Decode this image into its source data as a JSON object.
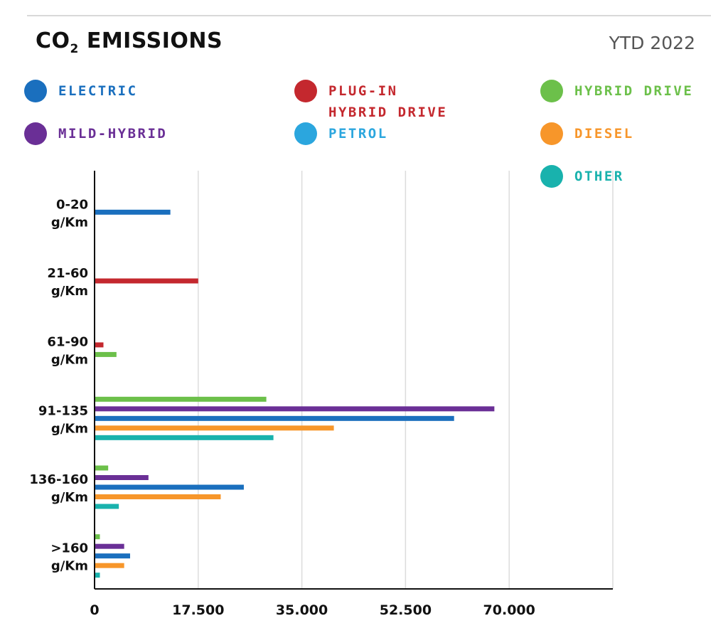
{
  "header": {
    "title_main": "CO",
    "title_sub": "2",
    "title_rest": " EMISSIONS",
    "period": "YTD 2022"
  },
  "legend": [
    {
      "label": "ELECTRIC",
      "color": "#1a6fbe"
    },
    {
      "label": "PLUG-IN\nHYBRID DRIVE",
      "color": "#c4282e"
    },
    {
      "label": "HYBRID DRIVE",
      "color": "#6cc04a"
    },
    {
      "label": "MILD-HYBRID",
      "color": "#6a2f96"
    },
    {
      "label": "PETROL",
      "color": "#2ba6de"
    },
    {
      "label": "DIESEL",
      "color": "#f7962a"
    },
    {
      "label": "OTHER",
      "color": "#19b2ad"
    }
  ],
  "chart_data": {
    "type": "bar",
    "orientation": "horizontal",
    "title": "CO2 EMISSIONS",
    "subtitle": "YTD 2022",
    "categories": [
      {
        "line1": "0-20",
        "line2": "g/Km"
      },
      {
        "line1": "21-60",
        "line2": "g/Km"
      },
      {
        "line1": "61-90",
        "line2": "g/Km"
      },
      {
        "line1": "91-135",
        "line2": "g/Km"
      },
      {
        "line1": "136-160",
        "line2": "g/Km"
      },
      {
        "line1": ">160",
        "line2": "g/Km"
      }
    ],
    "xlim": [
      0,
      87500
    ],
    "ticks": [
      0,
      17500,
      35000,
      52500,
      70000
    ],
    "tick_labels": [
      "0",
      "17.500",
      "35.000",
      "52.500",
      "70.000"
    ],
    "grid": true,
    "bars": [
      {
        "category": 0,
        "series": "ELECTRIC",
        "value": 12800
      },
      {
        "category": 1,
        "series": "PLUG-IN HYBRID DRIVE",
        "value": 17500
      },
      {
        "category": 2,
        "series": "PLUG-IN HYBRID DRIVE",
        "value": 1500
      },
      {
        "category": 2,
        "series": "HYBRID DRIVE",
        "value": 3700
      },
      {
        "category": 3,
        "series": "HYBRID DRIVE",
        "value": 29000
      },
      {
        "category": 3,
        "series": "MILD-HYBRID",
        "value": 67500
      },
      {
        "category": 3,
        "series": "ELECTRIC",
        "value": 60700
      },
      {
        "category": 3,
        "series": "DIESEL",
        "value": 40400
      },
      {
        "category": 3,
        "series": "OTHER",
        "value": 30200
      },
      {
        "category": 4,
        "series": "HYBRID DRIVE",
        "value": 2300
      },
      {
        "category": 4,
        "series": "MILD-HYBRID",
        "value": 9100
      },
      {
        "category": 4,
        "series": "ELECTRIC",
        "value": 25200
      },
      {
        "category": 4,
        "series": "DIESEL",
        "value": 21300
      },
      {
        "category": 4,
        "series": "OTHER",
        "value": 4100
      },
      {
        "category": 5,
        "series": "HYBRID DRIVE",
        "value": 900
      },
      {
        "category": 5,
        "series": "MILD-HYBRID",
        "value": 5000
      },
      {
        "category": 5,
        "series": "ELECTRIC",
        "value": 6000
      },
      {
        "category": 5,
        "series": "DIESEL",
        "value": 5000
      },
      {
        "category": 5,
        "series": "OTHER",
        "value": 900
      }
    ]
  }
}
